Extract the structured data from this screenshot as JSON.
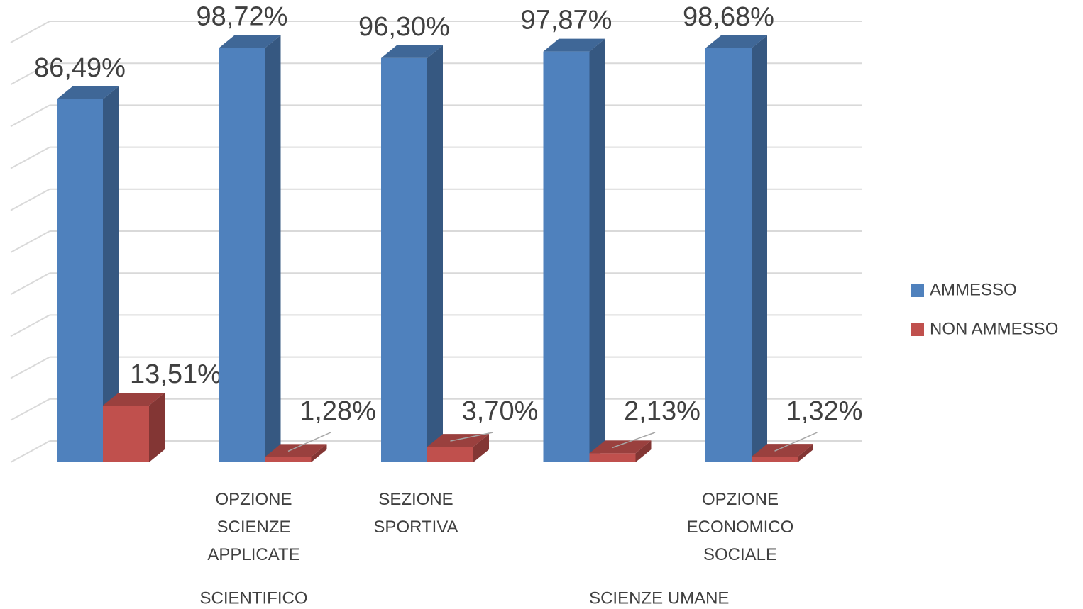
{
  "chart_data": {
    "type": "bar3d",
    "categories": [
      null,
      "OPZIONE SCIENZE APPLICATE",
      "SEZIONE SPORTIVA",
      null,
      "OPZIONE ECONOMICO SOCIALE"
    ],
    "groups": [
      {
        "name": "SCIENTIFICO",
        "span": [
          0,
          2
        ]
      },
      {
        "name": "SCIENZE UMANE",
        "span": [
          3,
          4
        ]
      }
    ],
    "series": [
      {
        "name": "AMMESSO",
        "color": "#4f81bd",
        "values": [
          86.49,
          98.72,
          96.3,
          97.87,
          98.68
        ],
        "value_labels": [
          "86,49%",
          "98,72%",
          "96,30%",
          "97,87%",
          "98,68%"
        ]
      },
      {
        "name": "NON AMMESSO",
        "color": "#c0504d",
        "values": [
          13.51,
          1.28,
          3.7,
          2.13,
          1.32
        ],
        "value_labels": [
          "13,51%",
          "1,28%",
          "3,70%",
          "2,13%",
          "1,32%"
        ]
      }
    ],
    "ylim": [
      0,
      100
    ],
    "yticks": [
      0,
      10,
      20,
      30,
      40,
      50,
      60,
      70,
      80,
      90,
      100
    ],
    "grid": true,
    "legend": "right"
  }
}
